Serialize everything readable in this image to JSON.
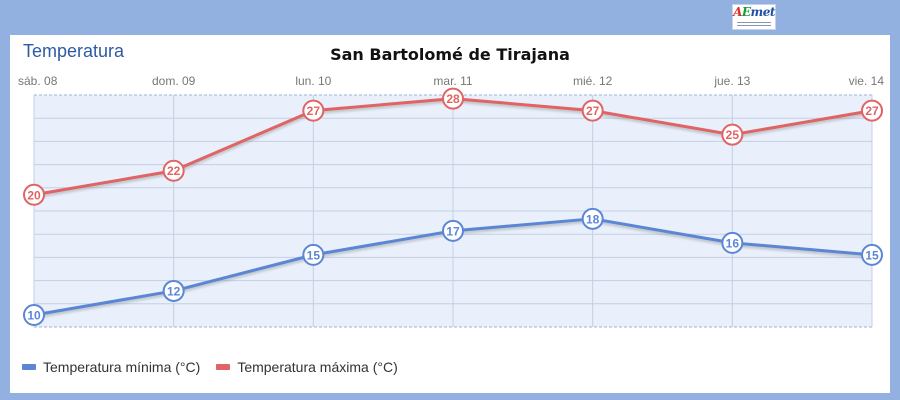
{
  "header": {
    "section_title": "Temperatura",
    "logo_text_a": "A",
    "logo_text_e": "E",
    "logo_text_m": "met"
  },
  "chart_data": {
    "type": "line",
    "title": "San Bartolomé de Tirajana",
    "categories": [
      "sáb. 08",
      "dom. 09",
      "lun. 10",
      "mar. 11",
      "mié. 12",
      "jue. 13",
      "vie. 14"
    ],
    "series": [
      {
        "name": "Temperatura mínima (°C)",
        "color": "#5b86d6",
        "values": [
          10,
          12,
          15,
          17,
          18,
          16,
          15
        ]
      },
      {
        "name": "Temperatura máxima (°C)",
        "color": "#e06464",
        "values": [
          20,
          22,
          27,
          28,
          27,
          25,
          27
        ]
      }
    ],
    "ylim": [
      9,
      28.3
    ],
    "grid": true,
    "legend_position": "bottom-left",
    "xlabel": "",
    "ylabel": ""
  },
  "colors": {
    "page_background": "#93b1e0",
    "plot_background": "#e9f0fc",
    "grid": "#c4cfe3",
    "section_title": "#2e5aa6"
  }
}
